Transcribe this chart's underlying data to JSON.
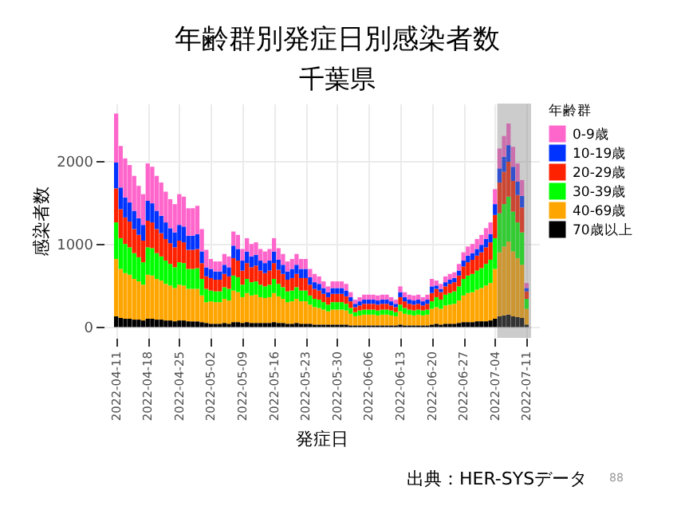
{
  "chart_data": {
    "type": "bar",
    "title": "年齢群別発症日別感染者数",
    "subtitle": "千葉県",
    "xlabel": "発症日",
    "ylabel": "感染者数",
    "legend_title": "年齢群",
    "legend": "right",
    "grid": true,
    "stacked": true,
    "x": [
      "2022-04-11",
      "2022-04-12",
      "2022-04-13",
      "2022-04-14",
      "2022-04-15",
      "2022-04-16",
      "2022-04-17",
      "2022-04-18",
      "2022-04-19",
      "2022-04-20",
      "2022-04-21",
      "2022-04-22",
      "2022-04-23",
      "2022-04-24",
      "2022-04-25",
      "2022-04-26",
      "2022-04-27",
      "2022-04-28",
      "2022-04-29",
      "2022-04-30",
      "2022-05-01",
      "2022-05-02",
      "2022-05-03",
      "2022-05-04",
      "2022-05-05",
      "2022-05-06",
      "2022-05-07",
      "2022-05-08",
      "2022-05-09",
      "2022-05-10",
      "2022-05-11",
      "2022-05-12",
      "2022-05-13",
      "2022-05-14",
      "2022-05-15",
      "2022-05-16",
      "2022-05-17",
      "2022-05-18",
      "2022-05-19",
      "2022-05-20",
      "2022-05-21",
      "2022-05-22",
      "2022-05-23",
      "2022-05-24",
      "2022-05-25",
      "2022-05-26",
      "2022-05-27",
      "2022-05-28",
      "2022-05-29",
      "2022-05-30",
      "2022-05-31",
      "2022-06-01",
      "2022-06-02",
      "2022-06-03",
      "2022-06-04",
      "2022-06-05",
      "2022-06-06",
      "2022-06-07",
      "2022-06-08",
      "2022-06-09",
      "2022-06-10",
      "2022-06-11",
      "2022-06-12",
      "2022-06-13",
      "2022-06-14",
      "2022-06-15",
      "2022-06-16",
      "2022-06-17",
      "2022-06-18",
      "2022-06-19",
      "2022-06-20",
      "2022-06-21",
      "2022-06-22",
      "2022-06-23",
      "2022-06-24",
      "2022-06-25",
      "2022-06-26",
      "2022-06-27",
      "2022-06-28",
      "2022-06-29",
      "2022-06-30",
      "2022-07-01",
      "2022-07-02",
      "2022-07-03",
      "2022-07-04",
      "2022-07-05",
      "2022-07-06",
      "2022-07-07",
      "2022-07-08",
      "2022-07-09",
      "2022-07-10",
      "2022-07-11"
    ],
    "xlim": [
      "2022-04-10",
      "2022-07-12"
    ],
    "xticks": [
      {
        "value": "2022-04-11",
        "label": "2022-04-11"
      },
      {
        "value": "2022-04-18",
        "label": "2022-04-18"
      },
      {
        "value": "2022-04-25",
        "label": "2022-04-25"
      },
      {
        "value": "2022-05-02",
        "label": "2022-05-02"
      },
      {
        "value": "2022-05-09",
        "label": "2022-05-09"
      },
      {
        "value": "2022-05-16",
        "label": "2022-05-16"
      },
      {
        "value": "2022-05-23",
        "label": "2022-05-23"
      },
      {
        "value": "2022-05-30",
        "label": "2022-05-30"
      },
      {
        "value": "2022-06-06",
        "label": "2022-06-06"
      },
      {
        "value": "2022-06-13",
        "label": "2022-06-13"
      },
      {
        "value": "2022-06-20",
        "label": "2022-06-20"
      },
      {
        "value": "2022-06-27",
        "label": "2022-06-27"
      },
      {
        "value": "2022-07-04",
        "label": "2022-07-04"
      },
      {
        "value": "2022-07-11",
        "label": "2022-07-11"
      }
    ],
    "ylim": [
      -130,
      2690
    ],
    "yticks": [
      0,
      1000,
      2000
    ],
    "bands": [
      {
        "axis": "x",
        "from": "2022-07-04T12:00",
        "to": "2022-07-12",
        "color": "#808080"
      }
    ],
    "annotations": [
      "出典：HER-SYSデータ",
      "88"
    ],
    "series": [
      {
        "name": "70歳以上",
        "color": "#000000",
        "values": [
          130,
          110,
          100,
          100,
          90,
          90,
          80,
          100,
          100,
          90,
          90,
          80,
          80,
          70,
          80,
          80,
          70,
          70,
          70,
          60,
          50,
          40,
          40,
          40,
          50,
          40,
          60,
          60,
          50,
          60,
          50,
          50,
          50,
          50,
          50,
          60,
          50,
          50,
          40,
          40,
          50,
          40,
          40,
          40,
          30,
          30,
          30,
          30,
          30,
          30,
          30,
          30,
          20,
          20,
          20,
          20,
          20,
          20,
          20,
          20,
          20,
          20,
          20,
          30,
          20,
          20,
          20,
          20,
          20,
          20,
          30,
          40,
          30,
          40,
          40,
          40,
          50,
          60,
          60,
          60,
          70,
          70,
          70,
          80,
          100,
          130,
          140,
          150,
          130,
          120,
          110,
          30
        ]
      },
      {
        "name": "40-69歳",
        "color": "#ffa500",
        "values": [
          690,
          590,
          550,
          530,
          490,
          460,
          430,
          530,
          520,
          490,
          470,
          440,
          420,
          400,
          430,
          420,
          390,
          390,
          390,
          320,
          250,
          270,
          260,
          260,
          290,
          280,
          380,
          360,
          310,
          350,
          330,
          340,
          310,
          300,
          310,
          350,
          320,
          290,
          260,
          270,
          290,
          270,
          270,
          230,
          210,
          200,
          180,
          160,
          180,
          180,
          180,
          170,
          140,
          110,
          120,
          130,
          130,
          130,
          120,
          130,
          130,
          120,
          110,
          160,
          140,
          130,
          120,
          130,
          120,
          130,
          190,
          200,
          190,
          220,
          230,
          240,
          270,
          320,
          350,
          360,
          380,
          400,
          430,
          450,
          600,
          770,
          830,
          880,
          780,
          710,
          640,
          190
        ]
      },
      {
        "name": "30-39歳",
        "color": "#00ff00",
        "values": [
          440,
          370,
          350,
          330,
          310,
          290,
          270,
          330,
          330,
          310,
          290,
          280,
          260,
          250,
          270,
          270,
          240,
          240,
          250,
          200,
          160,
          130,
          130,
          130,
          140,
          140,
          180,
          180,
          150,
          170,
          160,
          160,
          150,
          140,
          150,
          170,
          150,
          140,
          130,
          130,
          140,
          130,
          130,
          110,
          100,
          100,
          90,
          80,
          90,
          90,
          90,
          80,
          70,
          50,
          60,
          60,
          60,
          60,
          60,
          60,
          60,
          60,
          50,
          80,
          70,
          60,
          60,
          60,
          60,
          60,
          90,
          120,
          110,
          130,
          140,
          150,
          170,
          200,
          210,
          220,
          230,
          240,
          260,
          280,
          370,
          470,
          510,
          540,
          480,
          430,
          390,
          120
        ]
      },
      {
        "name": "20-29歳",
        "color": "#ff2200",
        "values": [
          410,
          350,
          320,
          310,
          290,
          270,
          260,
          320,
          310,
          290,
          280,
          260,
          250,
          240,
          260,
          250,
          230,
          230,
          230,
          190,
          150,
          150,
          140,
          140,
          160,
          150,
          210,
          200,
          170,
          190,
          180,
          190,
          170,
          160,
          170,
          190,
          170,
          160,
          140,
          150,
          160,
          150,
          150,
          130,
          120,
          110,
          100,
          90,
          100,
          100,
          100,
          90,
          80,
          60,
          60,
          70,
          70,
          70,
          70,
          70,
          70,
          60,
          60,
          90,
          80,
          70,
          70,
          70,
          60,
          70,
          100,
          100,
          90,
          100,
          110,
          110,
          130,
          150,
          160,
          170,
          180,
          190,
          200,
          210,
          280,
          370,
          390,
          420,
          370,
          330,
          300,
          90
        ]
      },
      {
        "name": "10-19歳",
        "color": "#0033ff",
        "values": [
          310,
          260,
          240,
          230,
          220,
          200,
          190,
          240,
          230,
          220,
          210,
          200,
          180,
          180,
          190,
          190,
          170,
          170,
          180,
          140,
          110,
          110,
          100,
          100,
          110,
          110,
          150,
          140,
          120,
          140,
          130,
          130,
          120,
          120,
          120,
          140,
          120,
          110,
          100,
          110,
          110,
          110,
          110,
          90,
          80,
          80,
          70,
          60,
          70,
          70,
          70,
          70,
          50,
          40,
          50,
          50,
          50,
          50,
          50,
          50,
          50,
          50,
          40,
          60,
          50,
          50,
          50,
          50,
          50,
          50,
          80,
          40,
          40,
          50,
          50,
          50,
          60,
          70,
          80,
          80,
          80,
          90,
          100,
          100,
          130,
          170,
          180,
          200,
          170,
          160,
          140,
          40
        ]
      },
      {
        "name": "0-9歳",
        "color": "#ff66cc",
        "values": [
          590,
          500,
          470,
          450,
          420,
          390,
          370,
          450,
          440,
          420,
          400,
          370,
          350,
          340,
          370,
          360,
          330,
          330,
          340,
          270,
          210,
          120,
          120,
          120,
          130,
          130,
          170,
          170,
          140,
          160,
          150,
          150,
          140,
          140,
          140,
          160,
          140,
          130,
          120,
          120,
          130,
          120,
          120,
          100,
          100,
          90,
          80,
          70,
          80,
          80,
          80,
          80,
          60,
          50,
          50,
          60,
          60,
          60,
          60,
          60,
          60,
          50,
          50,
          70,
          60,
          60,
          60,
          60,
          50,
          60,
          90,
          60,
          60,
          70,
          70,
          70,
          80,
          100,
          110,
          110,
          120,
          120,
          130,
          140,
          180,
          240,
          250,
          260,
          240,
          220,
          190,
          60
        ]
      }
    ]
  }
}
